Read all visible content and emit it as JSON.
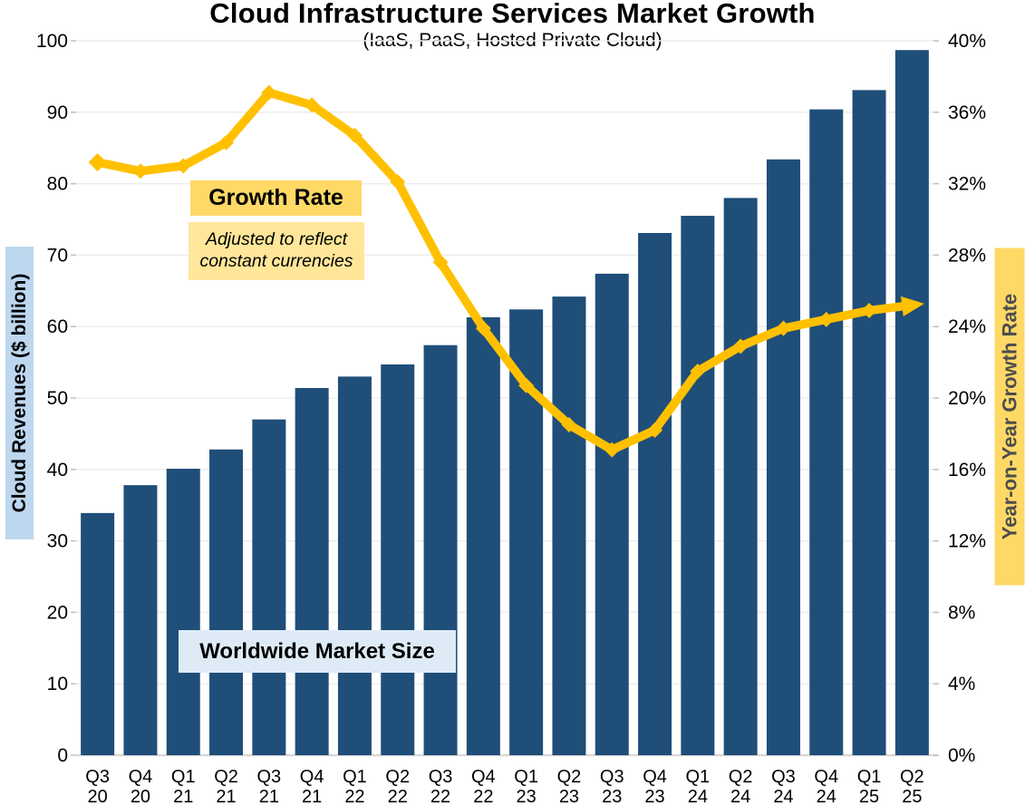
{
  "colors": {
    "bar": "#1F4E79",
    "line": "#FFC000",
    "growth_label_bg": "#FFD966",
    "growth_note_bg": "#FFE699",
    "market_label_bg": "#DEEBF7",
    "left_axis_title_bg": "#BDD7EE",
    "right_axis_title_bg": "#FFD966",
    "gridline": "#EDEDED",
    "axis_line": "#D9D9D9",
    "tick_mark": "#BFBFBF",
    "tick_text": "#000000"
  },
  "chart_data": {
    "type": "combo",
    "title": "Cloud Infrastructure Services Market Growth",
    "subtitle": "(IaaS, PaaS, Hosted Private Cloud)",
    "categories": [
      "Q3 20",
      "Q4 20",
      "Q1 21",
      "Q2 21",
      "Q3 21",
      "Q4 21",
      "Q1 22",
      "Q2 22",
      "Q3 22",
      "Q4 22",
      "Q1 23",
      "Q2 23",
      "Q3 23",
      "Q4 23",
      "Q1 24",
      "Q2 24",
      "Q3 24",
      "Q4 24",
      "Q1 25",
      "Q2 25"
    ],
    "series": [
      {
        "name": "Worldwide Market Size",
        "type": "bar",
        "axis": "left",
        "values": [
          33.9,
          37.8,
          40.1,
          42.8,
          47.0,
          51.4,
          53.0,
          54.7,
          57.4,
          61.3,
          62.4,
          64.2,
          67.4,
          73.1,
          75.5,
          78.0,
          83.4,
          90.4,
          93.1,
          98.7
        ]
      },
      {
        "name": "Growth Rate",
        "type": "line",
        "axis": "right",
        "values": [
          33.2,
          32.7,
          33.0,
          34.3,
          37.1,
          36.4,
          34.7,
          32.1,
          27.6,
          23.9,
          20.7,
          18.5,
          17.1,
          18.2,
          21.5,
          22.9,
          23.9,
          24.4,
          24.9,
          25.2
        ]
      }
    ],
    "left_axis": {
      "title": "Cloud Revenues ($ billion)",
      "min": 0,
      "max": 100,
      "step": 10,
      "ticks": [
        "0",
        "10",
        "20",
        "30",
        "40",
        "50",
        "60",
        "70",
        "80",
        "90",
        "100"
      ]
    },
    "right_axis": {
      "title": "Year-on-Year Growth Rate",
      "min": 0,
      "max": 40,
      "step": 4,
      "ticks": [
        "0%",
        "4%",
        "8%",
        "12%",
        "16%",
        "20%",
        "24%",
        "28%",
        "32%",
        "36%",
        "40%"
      ]
    },
    "annotations": [
      {
        "id": "growth-rate-label",
        "text": "Growth Rate"
      },
      {
        "id": "growth-rate-note",
        "text": "Adjusted to reflect constant currencies"
      },
      {
        "id": "market-size-label",
        "text": "Worldwide Market Size"
      }
    ],
    "legend": "none",
    "grid": true
  }
}
